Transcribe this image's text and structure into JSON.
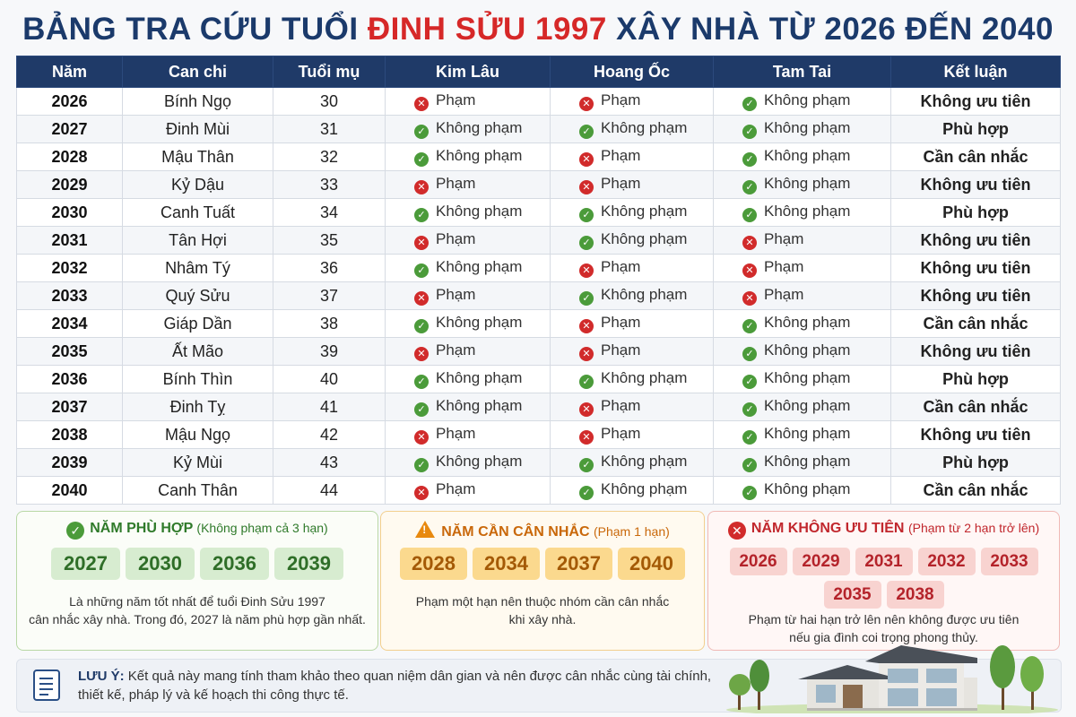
{
  "title": {
    "part1": "BẢNG TRA CỨU TUỔI ",
    "highlight": "ĐINH SỬU 1997",
    "part2": " XÂY NHÀ TỪ 2026 ĐẾN 2040"
  },
  "table": {
    "headers": [
      "Năm",
      "Can chi",
      "Tuổi mụ",
      "Kim Lâu",
      "Hoang Ốc",
      "Tam Tai",
      "Kết luận"
    ],
    "rows": [
      {
        "year": "2026",
        "canchi": "Bính Ngọ",
        "age": "30",
        "kimlau": "Phạm",
        "hoangoc": "Phạm",
        "tamtai": "Không phạm",
        "conclusion": "Không ưu tiên"
      },
      {
        "year": "2027",
        "canchi": "Đinh Mùi",
        "age": "31",
        "kimlau": "Không phạm",
        "hoangoc": "Không phạm",
        "tamtai": "Không phạm",
        "conclusion": "Phù hợp"
      },
      {
        "year": "2028",
        "canchi": "Mậu Thân",
        "age": "32",
        "kimlau": "Không phạm",
        "hoangoc": "Phạm",
        "tamtai": "Không phạm",
        "conclusion": "Cần cân nhắc"
      },
      {
        "year": "2029",
        "canchi": "Kỷ Dậu",
        "age": "33",
        "kimlau": "Phạm",
        "hoangoc": "Phạm",
        "tamtai": "Không phạm",
        "conclusion": "Không ưu tiên"
      },
      {
        "year": "2030",
        "canchi": "Canh Tuất",
        "age": "34",
        "kimlau": "Không phạm",
        "hoangoc": "Không phạm",
        "tamtai": "Không phạm",
        "conclusion": "Phù hợp"
      },
      {
        "year": "2031",
        "canchi": "Tân Hợi",
        "age": "35",
        "kimlau": "Phạm",
        "hoangoc": "Không phạm",
        "tamtai": "Phạm",
        "conclusion": "Không ưu tiên"
      },
      {
        "year": "2032",
        "canchi": "Nhâm Tý",
        "age": "36",
        "kimlau": "Không phạm",
        "hoangoc": "Phạm",
        "tamtai": "Phạm",
        "conclusion": "Không ưu tiên"
      },
      {
        "year": "2033",
        "canchi": "Quý Sửu",
        "age": "37",
        "kimlau": "Phạm",
        "hoangoc": "Không phạm",
        "tamtai": "Phạm",
        "conclusion": "Không ưu tiên"
      },
      {
        "year": "2034",
        "canchi": "Giáp Dần",
        "age": "38",
        "kimlau": "Không phạm",
        "hoangoc": "Phạm",
        "tamtai": "Không phạm",
        "conclusion": "Cần cân nhắc"
      },
      {
        "year": "2035",
        "canchi": "Ất Mão",
        "age": "39",
        "kimlau": "Phạm",
        "hoangoc": "Phạm",
        "tamtai": "Không phạm",
        "conclusion": "Không ưu tiên"
      },
      {
        "year": "2036",
        "canchi": "Bính Thìn",
        "age": "40",
        "kimlau": "Không phạm",
        "hoangoc": "Không phạm",
        "tamtai": "Không phạm",
        "conclusion": "Phù hợp"
      },
      {
        "year": "2037",
        "canchi": "Đinh Tỵ",
        "age": "41",
        "kimlau": "Không phạm",
        "hoangoc": "Phạm",
        "tamtai": "Không phạm",
        "conclusion": "Cần cân nhắc"
      },
      {
        "year": "2038",
        "canchi": "Mậu Ngọ",
        "age": "42",
        "kimlau": "Phạm",
        "hoangoc": "Phạm",
        "tamtai": "Không phạm",
        "conclusion": "Không ưu tiên"
      },
      {
        "year": "2039",
        "canchi": "Kỷ Mùi",
        "age": "43",
        "kimlau": "Không phạm",
        "hoangoc": "Không phạm",
        "tamtai": "Không phạm",
        "conclusion": "Phù hợp"
      },
      {
        "year": "2040",
        "canchi": "Canh Thân",
        "age": "44",
        "kimlau": "Phạm",
        "hoangoc": "Không phạm",
        "tamtai": "Không phạm",
        "conclusion": "Cần cân nhắc"
      }
    ],
    "conclusion_colors": {
      "Phù hợp": "#2f8a2f",
      "Cần cân nhắc": "#e27a12",
      "Không ưu tiên": "#d62828"
    }
  },
  "summary": {
    "suitable": {
      "title": "NĂM PHÙ HỢP",
      "subtitle": "(Không phạm cả 3 hạn)",
      "years": [
        "2027",
        "2030",
        "2036",
        "2039"
      ],
      "note_line1": "Là những năm tốt nhất để tuổi Đinh Sửu 1997",
      "note_line2": "cân nhắc xây nhà. Trong đó, 2027 là năm phù hợp gần nhất.",
      "icon": "check-circle-icon"
    },
    "consider": {
      "title": "NĂM CẦN CÂN NHẮC",
      "subtitle": "(Phạm 1 hạn)",
      "years": [
        "2028",
        "2034",
        "2037",
        "2040"
      ],
      "note_line1": "Phạm một hạn nên thuộc nhóm cần cân nhắc",
      "note_line2": "khi xây nhà.",
      "icon": "warning-triangle-icon"
    },
    "not_priority": {
      "title": "NĂM KHÔNG ƯU TIÊN",
      "subtitle": "(Phạm từ 2 hạn trở lên)",
      "years": [
        "2026",
        "2029",
        "2031",
        "2032",
        "2033",
        "2035",
        "2038"
      ],
      "note_line1": "Phạm từ hai hạn trở lên nên không được ưu tiên",
      "note_line2": "nếu gia đình coi trọng phong thủy.",
      "icon": "x-circle-icon"
    }
  },
  "note": {
    "label": "LƯU Ý:",
    "text": " Kết quả này mang tính tham khảo theo quan niệm dân gian và nên được cân nhắc cùng tài chính, thiết kế, pháp lý và kế hoạch thi công thực tế.",
    "icon": "document-list-icon"
  }
}
